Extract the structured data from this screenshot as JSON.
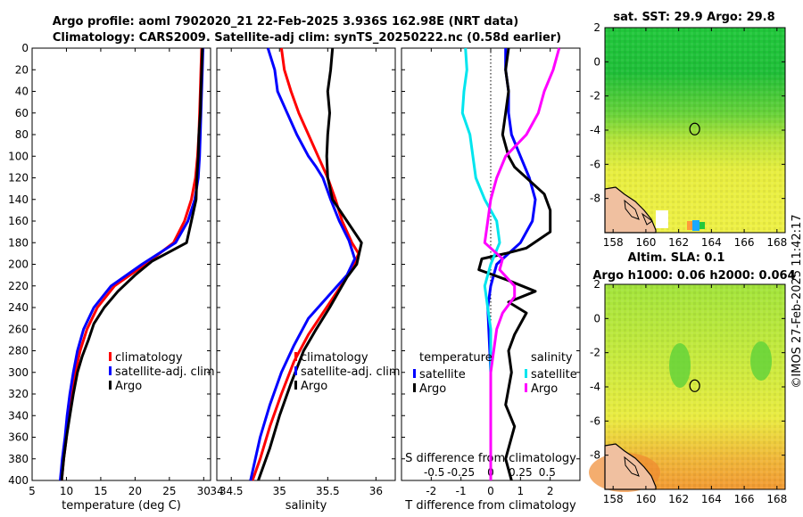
{
  "title": {
    "line1": "Argo profile: aoml 7902020_21 22-Feb-2025 3.936S 162.98E (NRT data)",
    "line2": "Climatology: CARS2009. Satellite-adj clim: synTS_20250222.nc (0.58d earlier)"
  },
  "credit": "©IMOS 27-Feb-2025 11:42:17",
  "colors": {
    "climatology": "#ff0000",
    "satellite": "#0000ff",
    "argo": "#000000",
    "temp_diff": "#00e5ee",
    "sal_diff": "#ff00ff"
  },
  "depth_ticks": [
    0,
    20,
    40,
    60,
    80,
    100,
    120,
    140,
    160,
    180,
    200,
    220,
    240,
    260,
    280,
    300,
    320,
    340,
    360,
    380,
    400
  ],
  "chart_data": [
    {
      "type": "line",
      "name": "temperature",
      "xlabel": "temperature (deg C)",
      "xlim": [
        5,
        31
      ],
      "xticks": [
        5,
        10,
        15,
        20,
        25,
        30
      ],
      "ylim": [
        400,
        0
      ],
      "legend": [
        "climatology",
        "satellite-adj. clim",
        "Argo"
      ],
      "series": [
        {
          "name": "climatology",
          "color": "#ff0000",
          "points": [
            [
              29.7,
              0
            ],
            [
              29.6,
              20
            ],
            [
              29.5,
              40
            ],
            [
              29.4,
              60
            ],
            [
              29.3,
              80
            ],
            [
              29.1,
              100
            ],
            [
              28.8,
              120
            ],
            [
              28.2,
              140
            ],
            [
              27.2,
              160
            ],
            [
              25.6,
              180
            ],
            [
              21.5,
              200
            ],
            [
              17.0,
              220
            ],
            [
              14.5,
              240
            ],
            [
              13.0,
              260
            ],
            [
              12.0,
              280
            ],
            [
              11.3,
              300
            ],
            [
              10.8,
              320
            ],
            [
              10.3,
              340
            ],
            [
              10.0,
              360
            ],
            [
              9.6,
              380
            ],
            [
              9.3,
              400
            ]
          ]
        },
        {
          "name": "satellite-adj. clim",
          "color": "#0000ff",
          "points": [
            [
              29.9,
              0
            ],
            [
              29.8,
              20
            ],
            [
              29.7,
              40
            ],
            [
              29.6,
              60
            ],
            [
              29.5,
              80
            ],
            [
              29.4,
              100
            ],
            [
              29.2,
              120
            ],
            [
              28.7,
              140
            ],
            [
              27.7,
              160
            ],
            [
              25.9,
              180
            ],
            [
              21.0,
              200
            ],
            [
              16.5,
              220
            ],
            [
              14.0,
              240
            ],
            [
              12.5,
              260
            ],
            [
              11.6,
              280
            ],
            [
              11.0,
              300
            ],
            [
              10.5,
              320
            ],
            [
              10.1,
              340
            ],
            [
              9.8,
              360
            ],
            [
              9.4,
              380
            ],
            [
              9.1,
              400
            ]
          ]
        },
        {
          "name": "Argo",
          "color": "#000000",
          "points": [
            [
              29.8,
              0
            ],
            [
              29.7,
              20
            ],
            [
              29.6,
              40
            ],
            [
              29.5,
              60
            ],
            [
              29.3,
              80
            ],
            [
              29.2,
              100
            ],
            [
              29.0,
              120
            ],
            [
              28.9,
              140
            ],
            [
              28.2,
              160
            ],
            [
              27.5,
              180
            ],
            [
              22.5,
              197
            ],
            [
              20.0,
              210
            ],
            [
              17.5,
              225
            ],
            [
              15.5,
              240
            ],
            [
              14.0,
              255
            ],
            [
              13.2,
              270
            ],
            [
              12.3,
              285
            ],
            [
              11.6,
              300
            ],
            [
              11.0,
              320
            ],
            [
              10.5,
              340
            ],
            [
              10.0,
              360
            ],
            [
              9.6,
              380
            ],
            [
              9.3,
              400
            ]
          ]
        }
      ]
    },
    {
      "type": "line",
      "name": "salinity",
      "xlabel": "salinity",
      "xlim": [
        34.35,
        36.2
      ],
      "xticks": [
        34.5,
        35,
        35.5,
        36
      ],
      "xticklabels": [
        "34.5",
        "35",
        "35.5",
        "36"
      ],
      "ylim": [
        400,
        0
      ],
      "legend": [
        "climatology",
        "satellite-adj. clim",
        "Argo"
      ],
      "series": [
        {
          "name": "climatology",
          "color": "#ff0000",
          "points": [
            [
              35.02,
              0
            ],
            [
              35.05,
              20
            ],
            [
              35.12,
              40
            ],
            [
              35.2,
              60
            ],
            [
              35.3,
              80
            ],
            [
              35.4,
              100
            ],
            [
              35.5,
              120
            ],
            [
              35.58,
              140
            ],
            [
              35.65,
              160
            ],
            [
              35.75,
              180
            ],
            [
              35.82,
              190
            ],
            [
              35.75,
              205
            ],
            [
              35.6,
              225
            ],
            [
              35.45,
              245
            ],
            [
              35.3,
              265
            ],
            [
              35.15,
              290
            ],
            [
              35.02,
              320
            ],
            [
              34.9,
              350
            ],
            [
              34.8,
              380
            ],
            [
              34.72,
              400
            ]
          ]
        },
        {
          "name": "satellite-adj. clim",
          "color": "#0000ff",
          "points": [
            [
              34.88,
              0
            ],
            [
              34.95,
              20
            ],
            [
              34.98,
              40
            ],
            [
              35.08,
              60
            ],
            [
              35.18,
              80
            ],
            [
              35.3,
              100
            ],
            [
              35.38,
              110
            ],
            [
              35.45,
              120
            ],
            [
              35.53,
              140
            ],
            [
              35.62,
              160
            ],
            [
              35.72,
              178
            ],
            [
              35.78,
              195
            ],
            [
              35.7,
              210
            ],
            [
              35.5,
              230
            ],
            [
              35.3,
              250
            ],
            [
              35.15,
              275
            ],
            [
              35.02,
              300
            ],
            [
              34.9,
              330
            ],
            [
              34.8,
              360
            ],
            [
              34.7,
              400
            ]
          ]
        },
        {
          "name": "Argo",
          "color": "#000000",
          "points": [
            [
              35.55,
              0
            ],
            [
              35.53,
              20
            ],
            [
              35.5,
              40
            ],
            [
              35.52,
              60
            ],
            [
              35.5,
              80
            ],
            [
              35.49,
              100
            ],
            [
              35.5,
              120
            ],
            [
              35.55,
              140
            ],
            [
              35.7,
              160
            ],
            [
              35.85,
              180
            ],
            [
              35.8,
              200
            ],
            [
              35.7,
              212
            ],
            [
              35.52,
              240
            ],
            [
              35.38,
              260
            ],
            [
              35.25,
              280
            ],
            [
              35.12,
              310
            ],
            [
              35.0,
              340
            ],
            [
              34.9,
              370
            ],
            [
              34.78,
              400
            ]
          ]
        }
      ]
    },
    {
      "type": "line",
      "name": "difference",
      "xlabel": "T difference from climatology",
      "xlabel_top": "S difference from climatology",
      "xlim": [
        -3,
        3
      ],
      "xticks": [
        -2,
        -1,
        0,
        1,
        2
      ],
      "xticklabels": [
        "-2",
        "-1",
        "0",
        "1",
        "2"
      ],
      "s_ticklabels": [
        "-0.5",
        "-0.25",
        "0",
        "0.25",
        "0.5"
      ],
      "ylim": [
        400,
        0
      ],
      "legend_temperature": {
        "title": "temperature",
        "items": [
          "satellite",
          "Argo"
        ]
      },
      "legend_salinity": {
        "title": "salinity",
        "items": [
          "satellite",
          "Argo"
        ]
      },
      "series": [
        {
          "name": "T satellite",
          "color": "#0000ff",
          "points": [
            [
              0.5,
              0
            ],
            [
              0.5,
              20
            ],
            [
              0.6,
              40
            ],
            [
              0.6,
              60
            ],
            [
              0.7,
              80
            ],
            [
              1.0,
              100
            ],
            [
              1.3,
              120
            ],
            [
              1.5,
              140
            ],
            [
              1.4,
              160
            ],
            [
              1.0,
              180
            ],
            [
              0.2,
              200
            ],
            [
              0.0,
              220
            ],
            [
              -0.1,
              240
            ],
            [
              0.0,
              300
            ],
            [
              0.0,
              400
            ]
          ]
        },
        {
          "name": "T Argo",
          "color": "#000000",
          "points": [
            [
              0.6,
              0
            ],
            [
              0.5,
              20
            ],
            [
              0.6,
              40
            ],
            [
              0.5,
              60
            ],
            [
              0.4,
              80
            ],
            [
              0.6,
              100
            ],
            [
              0.8,
              110
            ],
            [
              1.8,
              135
            ],
            [
              2.0,
              150
            ],
            [
              2.0,
              170
            ],
            [
              1.2,
              185
            ],
            [
              0.5,
              190
            ],
            [
              -0.3,
              195
            ],
            [
              -0.4,
              205
            ],
            [
              0.6,
              215
            ],
            [
              1.5,
              225
            ],
            [
              0.6,
              235
            ],
            [
              1.2,
              245
            ],
            [
              0.8,
              265
            ],
            [
              0.6,
              280
            ],
            [
              0.7,
              300
            ],
            [
              0.5,
              330
            ],
            [
              0.8,
              350
            ],
            [
              0.5,
              380
            ],
            [
              0.7,
              400
            ]
          ]
        },
        {
          "name": "S satellite",
          "color": "#00e5ee",
          "points": [
            [
              -0.85,
              0
            ],
            [
              -0.8,
              20
            ],
            [
              -0.9,
              40
            ],
            [
              -0.95,
              60
            ],
            [
              -0.7,
              80
            ],
            [
              -0.6,
              100
            ],
            [
              -0.5,
              120
            ],
            [
              -0.2,
              140
            ],
            [
              0.2,
              160
            ],
            [
              0.3,
              180
            ],
            [
              0.0,
              200
            ],
            [
              -0.2,
              220
            ],
            [
              0.0,
              260
            ],
            [
              0.0,
              300
            ],
            [
              0.0,
              400
            ]
          ]
        },
        {
          "name": "S Argo",
          "color": "#ff00ff",
          "points": [
            [
              2.3,
              0
            ],
            [
              2.1,
              20
            ],
            [
              1.8,
              40
            ],
            [
              1.6,
              60
            ],
            [
              1.2,
              80
            ],
            [
              0.5,
              100
            ],
            [
              0.2,
              120
            ],
            [
              0.0,
              140
            ],
            [
              -0.1,
              160
            ],
            [
              -0.2,
              180
            ],
            [
              0.4,
              195
            ],
            [
              0.3,
              205
            ],
            [
              0.8,
              220
            ],
            [
              0.8,
              230
            ],
            [
              0.4,
              245
            ],
            [
              0.2,
              260
            ],
            [
              0.0,
              300
            ],
            [
              0.0,
              400
            ]
          ]
        }
      ]
    },
    {
      "type": "heatmap",
      "name": "sst_map",
      "title": "sat. SST: 29.9 Argo: 29.8",
      "xticks": [
        158,
        160,
        162,
        164,
        166,
        168
      ],
      "yticks": [
        2,
        0,
        -2,
        -4,
        -6,
        -8
      ],
      "xlim": [
        157.5,
        168.5
      ],
      "ylim": [
        -10,
        2
      ],
      "marker": [
        162.98,
        -3.936
      ]
    },
    {
      "type": "heatmap",
      "name": "sla_map",
      "title_line1": "Altim. SLA: 0.1",
      "title_line2": "Argo h1000: 0.06 h2000: 0.064",
      "xticks": [
        158,
        160,
        162,
        164,
        166,
        168
      ],
      "yticks": [
        2,
        0,
        -2,
        -4,
        -6,
        -8
      ],
      "xlim": [
        157.5,
        168.5
      ],
      "ylim": [
        -10,
        2
      ],
      "marker": [
        162.98,
        -3.936
      ]
    }
  ]
}
